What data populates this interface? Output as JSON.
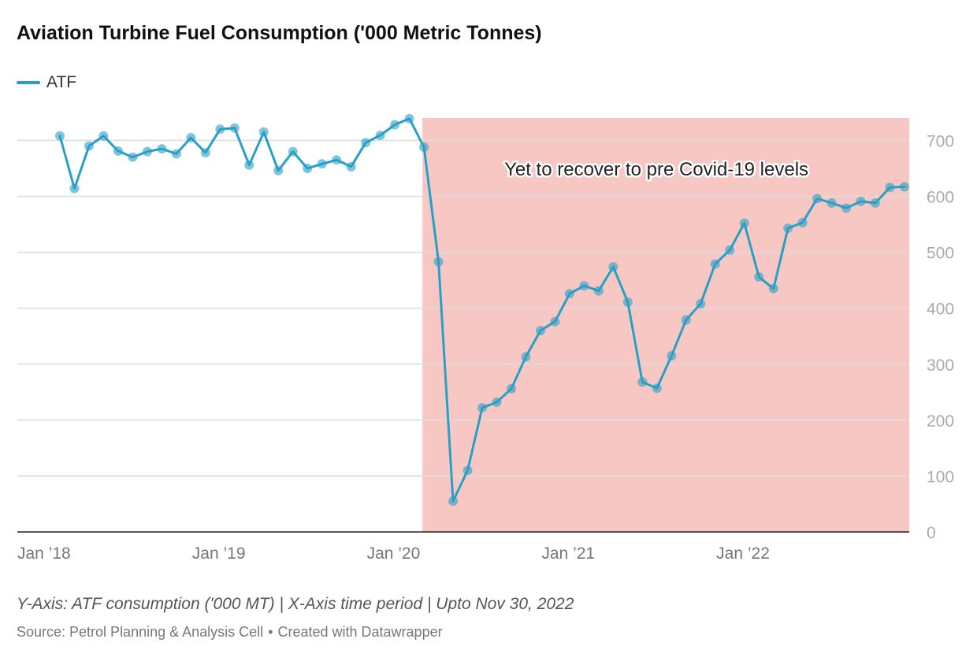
{
  "title": "Aviation Turbine Fuel Consumption ('000 Metric Tonnes)",
  "legend": {
    "label": "ATF",
    "color": "#2a9fc6"
  },
  "notes": "Y-Axis: ATF consumption ('000 MT) | X-Axis time period | Upto Nov 30, 2022",
  "source": {
    "text": "Source: Petrol Planning & Analysis Cell",
    "separator": "•",
    "credit": "Created with Datawrapper"
  },
  "chart_data": {
    "type": "line",
    "title": "Aviation Turbine Fuel Consumption ('000 Metric Tonnes)",
    "xlabel": "",
    "ylabel": "",
    "ylim": [
      0,
      740
    ],
    "yticks": [
      0,
      100,
      200,
      300,
      400,
      500,
      600,
      700
    ],
    "grid": true,
    "legend_position": "top-left",
    "xticks": [
      {
        "label": "Jan ’18",
        "month": "2018-01"
      },
      {
        "label": "Jan ’19",
        "month": "2019-01"
      },
      {
        "label": "Jan ’20",
        "month": "2020-01"
      },
      {
        "label": "Jan ’21",
        "month": "2021-01"
      },
      {
        "label": "Jan ’22",
        "month": "2022-01"
      }
    ],
    "x": [
      "2018-01",
      "2018-02",
      "2018-03",
      "2018-04",
      "2018-05",
      "2018-06",
      "2018-07",
      "2018-08",
      "2018-09",
      "2018-10",
      "2018-11",
      "2018-12",
      "2019-01",
      "2019-02",
      "2019-03",
      "2019-04",
      "2019-05",
      "2019-06",
      "2019-07",
      "2019-08",
      "2019-09",
      "2019-10",
      "2019-11",
      "2019-12",
      "2020-01",
      "2020-02",
      "2020-03",
      "2020-04",
      "2020-05",
      "2020-06",
      "2020-07",
      "2020-08",
      "2020-09",
      "2020-10",
      "2020-11",
      "2020-12",
      "2021-01",
      "2021-02",
      "2021-03",
      "2021-04",
      "2021-05",
      "2021-06",
      "2021-07",
      "2021-08",
      "2021-09",
      "2021-10",
      "2021-11",
      "2021-12",
      "2022-01",
      "2022-02",
      "2022-03",
      "2022-04",
      "2022-05",
      "2022-06",
      "2022-07",
      "2022-08",
      "2022-09",
      "2022-10",
      "2022-11"
    ],
    "series": [
      {
        "name": "ATF",
        "color": "#2a9fc6",
        "values": [
          708,
          614,
          690,
          708,
          681,
          670,
          680,
          685,
          676,
          705,
          678,
          720,
          722,
          656,
          715,
          646,
          680,
          650,
          658,
          665,
          653,
          696,
          709,
          728,
          739,
          688,
          483,
          55,
          110,
          222,
          232,
          256,
          313,
          360,
          376,
          426,
          440,
          431,
          474,
          411,
          268,
          257,
          315,
          379,
          408,
          479,
          504,
          552,
          456,
          435,
          543,
          553,
          596,
          588,
          579,
          591,
          588,
          616,
          617
        ]
      }
    ],
    "annotation": {
      "text": "Yet to recover to pre Covid-19 levels",
      "highlight_from": "2020-02",
      "highlight_to": "2022-11",
      "highlight_color": "#f7c8c3"
    }
  }
}
